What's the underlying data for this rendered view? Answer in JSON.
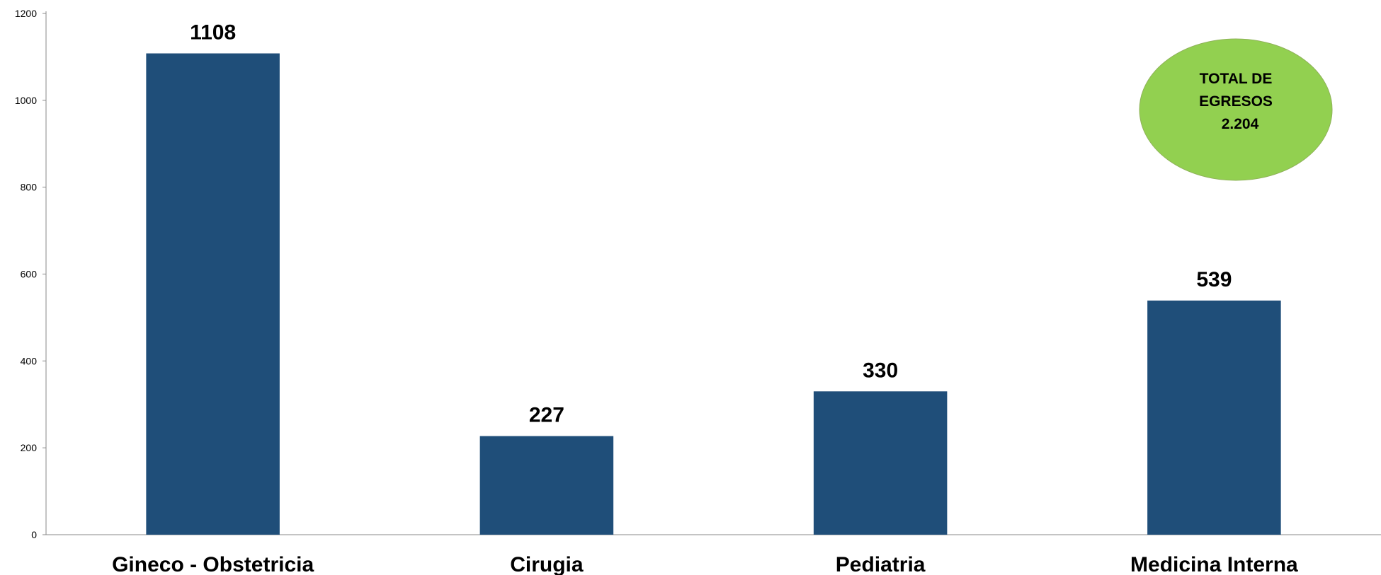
{
  "chart_data": {
    "type": "bar",
    "categories": [
      "Gineco - Obstetricia",
      "Cirugia",
      "Pediatria",
      "Medicina Interna"
    ],
    "values": [
      1108,
      227,
      330,
      539
    ],
    "data_labels": [
      "1108",
      "227",
      "330",
      "539"
    ],
    "title": "",
    "xlabel": "",
    "ylabel": "",
    "ylim": [
      0,
      1200
    ],
    "yticks": [
      0,
      200,
      400,
      600,
      800,
      1000,
      1200
    ],
    "grid": false,
    "legend": "none",
    "bar_color": "#1F4E79"
  },
  "callout": {
    "line1": "TOTAL DE",
    "line2": "EGRESOS",
    "line3": "2.204",
    "fill_color": "#92D050"
  }
}
